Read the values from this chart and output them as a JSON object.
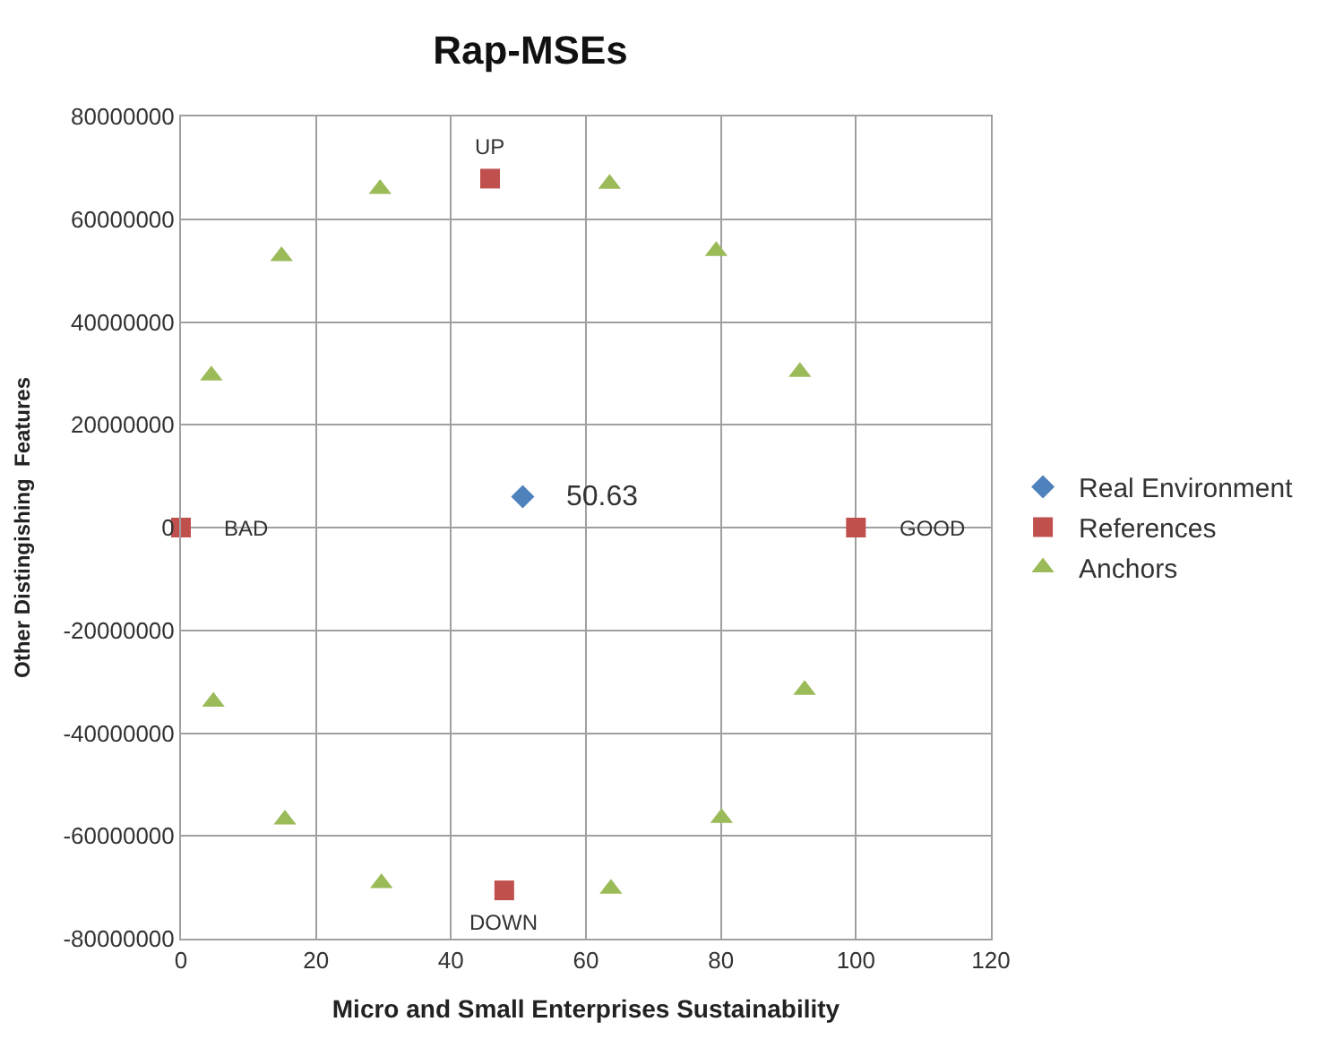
{
  "chart_data": {
    "type": "scatter",
    "title": "Rap-MSEs",
    "xlabel": "Micro and Small Enterprises Sustainability",
    "ylabel": "Other Distingishing  Features",
    "series": [
      {
        "name": "Real Environment",
        "color": "#4f81bd",
        "marker": "diamond",
        "x": [
          50.63
        ],
        "values": [
          6000000
        ]
      },
      {
        "name": "References",
        "color": "#c0504d",
        "marker": "square",
        "x": [
          0,
          100,
          45.8,
          47.9
        ],
        "values": [
          0,
          0,
          67900000,
          -70600000
        ]
      },
      {
        "name": "Anchors",
        "color": "#9bbb59",
        "marker": "triangle",
        "x": [
          4.5,
          14.9,
          29.5,
          63.5,
          79.3,
          91.7,
          92.4,
          80.1,
          63.7,
          29.7,
          15.4,
          4.8
        ],
        "values": [
          29600000,
          52800000,
          65900000,
          66900000,
          53800000,
          30300000,
          -31600000,
          -56500000,
          -70300000,
          -69200000,
          -56800000,
          -33900000
        ]
      }
    ],
    "annotations": [
      {
        "text": "50.63",
        "x": 50.63,
        "y": 6000000
      },
      {
        "text": "BAD",
        "x": 0,
        "y": 0
      },
      {
        "text": "GOOD",
        "x": 100,
        "y": 0
      },
      {
        "text": "UP",
        "x": 45.8,
        "y": 67900000
      },
      {
        "text": "DOWN",
        "x": 47.9,
        "y": -70600000
      }
    ],
    "xlim": [
      0,
      120
    ],
    "xticks": [
      0,
      20,
      40,
      60,
      80,
      100,
      120
    ],
    "ylim": [
      -80000000,
      80000000
    ],
    "yticks": [
      -80000000,
      -60000000,
      -40000000,
      -20000000,
      0,
      20000000,
      40000000,
      60000000,
      80000000
    ],
    "grid": true,
    "legend": "right"
  }
}
